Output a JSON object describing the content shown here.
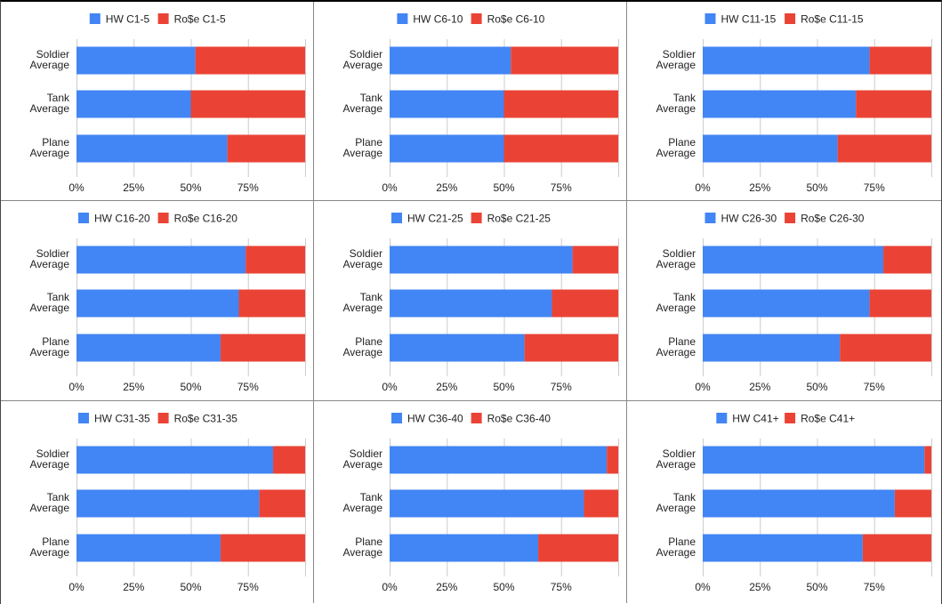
{
  "colors": {
    "hw": "#4285f4",
    "rose": "#ea4335",
    "grid": "#cccccc",
    "text": "#222222",
    "axis_text": "#222222"
  },
  "categories": [
    "Soldier|Average",
    "Tank|Average",
    "Plane|Average"
  ],
  "x_ticks": [
    "0%",
    "25%",
    "50%",
    "75%"
  ],
  "chart_data": [
    {
      "type": "bar",
      "stacked": "percent",
      "orientation": "horizontal",
      "categories": [
        "Soldier Average",
        "Tank Average",
        "Plane Average"
      ],
      "xlim": [
        0,
        100
      ],
      "legend": "top-center",
      "series": [
        {
          "name": "HW C1-5",
          "values": [
            52,
            50,
            66
          ]
        },
        {
          "name": "Ro$e C1-5",
          "values": [
            48,
            50,
            34
          ]
        }
      ]
    },
    {
      "type": "bar",
      "stacked": "percent",
      "orientation": "horizontal",
      "categories": [
        "Soldier Average",
        "Tank Average",
        "Plane Average"
      ],
      "xlim": [
        0,
        100
      ],
      "legend": "top-center",
      "series": [
        {
          "name": "HW C6-10",
          "values": [
            53,
            50,
            50
          ]
        },
        {
          "name": "Ro$e C6-10",
          "values": [
            47,
            50,
            50
          ]
        }
      ]
    },
    {
      "type": "bar",
      "stacked": "percent",
      "orientation": "horizontal",
      "categories": [
        "Soldier Average",
        "Tank Average",
        "Plane Average"
      ],
      "xlim": [
        0,
        100
      ],
      "legend": "top-center",
      "series": [
        {
          "name": "HW C11-15",
          "values": [
            73,
            67,
            59
          ]
        },
        {
          "name": "Ro$e C11-15",
          "values": [
            27,
            33,
            41
          ]
        }
      ]
    },
    {
      "type": "bar",
      "stacked": "percent",
      "orientation": "horizontal",
      "categories": [
        "Soldier Average",
        "Tank Average",
        "Plane Average"
      ],
      "xlim": [
        0,
        100
      ],
      "legend": "top-center",
      "series": [
        {
          "name": "HW C16-20",
          "values": [
            74,
            71,
            63
          ]
        },
        {
          "name": "Ro$e C16-20",
          "values": [
            26,
            29,
            37
          ]
        }
      ]
    },
    {
      "type": "bar",
      "stacked": "percent",
      "orientation": "horizontal",
      "categories": [
        "Soldier Average",
        "Tank Average",
        "Plane Average"
      ],
      "xlim": [
        0,
        100
      ],
      "legend": "top-center",
      "series": [
        {
          "name": "HW C21-25",
          "values": [
            80,
            71,
            59
          ]
        },
        {
          "name": "Ro$e C21-25",
          "values": [
            20,
            29,
            41
          ]
        }
      ]
    },
    {
      "type": "bar",
      "stacked": "percent",
      "orientation": "horizontal",
      "categories": [
        "Soldier Average",
        "Tank Average",
        "Plane Average"
      ],
      "xlim": [
        0,
        100
      ],
      "legend": "top-center",
      "series": [
        {
          "name": "HW C26-30",
          "values": [
            79,
            73,
            60
          ]
        },
        {
          "name": "Ro$e C26-30",
          "values": [
            21,
            27,
            40
          ]
        }
      ]
    },
    {
      "type": "bar",
      "stacked": "percent",
      "orientation": "horizontal",
      "categories": [
        "Soldier Average",
        "Tank Average",
        "Plane Average"
      ],
      "xlim": [
        0,
        100
      ],
      "legend": "top-center",
      "series": [
        {
          "name": "HW C31-35",
          "values": [
            86,
            80,
            63
          ]
        },
        {
          "name": "Ro$e C31-35",
          "values": [
            14,
            20,
            37
          ]
        }
      ]
    },
    {
      "type": "bar",
      "stacked": "percent",
      "orientation": "horizontal",
      "categories": [
        "Soldier Average",
        "Tank Average",
        "Plane Average"
      ],
      "xlim": [
        0,
        100
      ],
      "legend": "top-center",
      "series": [
        {
          "name": "HW C36-40",
          "values": [
            95,
            85,
            65
          ]
        },
        {
          "name": "Ro$e C36-40",
          "values": [
            5,
            15,
            35
          ]
        }
      ]
    },
    {
      "type": "bar",
      "stacked": "percent",
      "orientation": "horizontal",
      "categories": [
        "Soldier Average",
        "Tank Average",
        "Plane Average"
      ],
      "xlim": [
        0,
        100
      ],
      "legend": "top-center",
      "series": [
        {
          "name": "HW C41+",
          "values": [
            97,
            84,
            70
          ]
        },
        {
          "name": "Ro$e C41+",
          "values": [
            3,
            16,
            30
          ]
        }
      ]
    }
  ]
}
